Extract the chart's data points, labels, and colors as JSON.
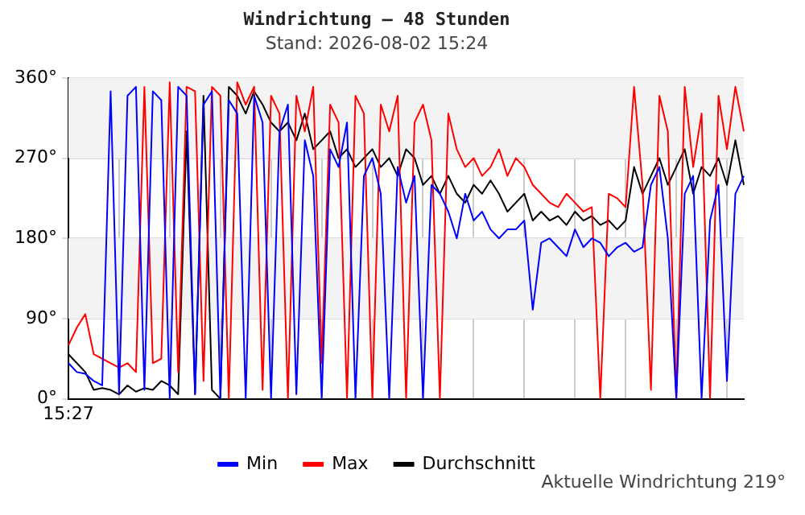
{
  "chart_data": {
    "type": "line",
    "title": "Windrichtung – 48 Stunden",
    "subtitle": "Stand: 2026-08-02 15:24",
    "annotations": [
      "Aktuelle Windrichtung 219°"
    ],
    "categories": [
      "15:27",
      null,
      null,
      null,
      null,
      null,
      null,
      null,
      null,
      null,
      null,
      null,
      null,
      null,
      null,
      null,
      null,
      null,
      null,
      null,
      null,
      null,
      null,
      null,
      null,
      null,
      null,
      null,
      null,
      null,
      null,
      null,
      null,
      null,
      null,
      null,
      null,
      null,
      null,
      null,
      null,
      null,
      null,
      null,
      null,
      null,
      null,
      null,
      null,
      null,
      null,
      null,
      null,
      null,
      null,
      null,
      null,
      null,
      null,
      null,
      null,
      null,
      null,
      null,
      null,
      null,
      null,
      null,
      null,
      null,
      null,
      null,
      null,
      null,
      null,
      null,
      null,
      null,
      null,
      null,
      null
    ],
    "series": [
      {
        "name": "Min",
        "color": "#0000ff",
        "values": [
          40,
          30,
          28,
          20,
          15,
          345,
          5,
          340,
          350,
          10,
          345,
          335,
          0,
          350,
          340,
          5,
          330,
          345,
          0,
          335,
          320,
          0,
          340,
          310,
          0,
          300,
          330,
          5,
          290,
          250,
          0,
          280,
          260,
          310,
          0,
          250,
          270,
          230,
          0,
          260,
          220,
          250,
          0,
          240,
          230,
          210,
          180,
          230,
          200,
          210,
          190,
          180,
          190,
          190,
          200,
          100,
          175,
          180,
          170,
          160,
          190,
          170,
          180,
          175,
          160,
          170,
          175,
          165,
          170,
          240,
          260,
          180,
          0,
          230,
          250,
          0,
          200,
          240,
          20,
          230,
          250
        ]
      },
      {
        "name": "Max",
        "color": "#ff0000",
        "values": [
          60,
          80,
          95,
          50,
          45,
          40,
          35,
          40,
          30,
          350,
          40,
          45,
          355,
          30,
          350,
          345,
          20,
          350,
          340,
          0,
          355,
          330,
          350,
          10,
          340,
          320,
          0,
          340,
          300,
          350,
          40,
          330,
          310,
          0,
          340,
          320,
          0,
          330,
          300,
          340,
          0,
          310,
          330,
          290,
          0,
          320,
          280,
          260,
          270,
          250,
          260,
          280,
          250,
          270,
          260,
          240,
          230,
          220,
          215,
          230,
          220,
          210,
          215,
          0,
          230,
          225,
          215,
          350,
          240,
          10,
          340,
          300,
          0,
          350,
          260,
          320,
          0,
          340,
          280,
          350,
          300
        ]
      },
      {
        "name": "Durchschnitt",
        "color": "#000000",
        "values": [
          50,
          40,
          30,
          10,
          12,
          10,
          5,
          15,
          8,
          12,
          10,
          20,
          15,
          5,
          300,
          5,
          340,
          10,
          0,
          350,
          340,
          320,
          345,
          330,
          310,
          300,
          310,
          290,
          320,
          280,
          290,
          300,
          270,
          280,
          260,
          270,
          280,
          260,
          270,
          250,
          280,
          270,
          240,
          250,
          230,
          250,
          230,
          220,
          240,
          230,
          245,
          230,
          210,
          220,
          230,
          200,
          210,
          200,
          205,
          195,
          210,
          200,
          205,
          195,
          200,
          190,
          200,
          260,
          230,
          250,
          270,
          240,
          260,
          280,
          230,
          260,
          250,
          270,
          240,
          290,
          240
        ]
      }
    ],
    "ylim": [
      0,
      360
    ],
    "yticks": [
      {
        "value": 0,
        "label": "0°"
      },
      {
        "value": 90,
        "label": "90°"
      },
      {
        "value": 180,
        "label": "180°"
      },
      {
        "value": 270,
        "label": "270°"
      },
      {
        "value": 360,
        "label": "360°"
      }
    ],
    "bands": [
      {
        "axis": "y",
        "from": 90,
        "to": 180,
        "color": "#f3f3f3"
      },
      {
        "axis": "y",
        "from": 270,
        "to": 360,
        "color": "#f3f3f3"
      }
    ],
    "grid": true,
    "legend": "bottom",
    "marker": "none",
    "line_style": "solid"
  }
}
